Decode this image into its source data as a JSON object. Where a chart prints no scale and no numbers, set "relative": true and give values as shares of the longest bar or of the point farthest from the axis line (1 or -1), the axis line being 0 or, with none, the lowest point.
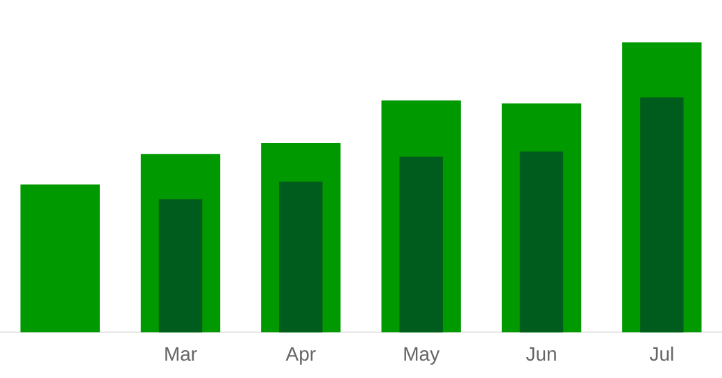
{
  "chart_data": {
    "type": "bar",
    "relative": true,
    "categories": [
      null,
      "Mar",
      "Apr",
      "May",
      "Jun",
      "Jul"
    ],
    "series": [
      {
        "color": "#009a00",
        "values": [
          0.51,
          0.615,
          0.653,
          0.8,
          0.79,
          1
        ]
      },
      {
        "color": "#005c1c",
        "values": [
          null,
          0.46,
          0.52,
          0.606,
          0.624,
          0.81
        ]
      }
    ],
    "legend": false
  }
}
